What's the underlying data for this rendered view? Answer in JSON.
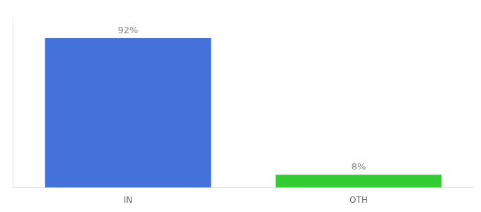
{
  "chart_data": {
    "type": "bar",
    "categories": [
      "IN",
      "OTH"
    ],
    "values": [
      92,
      8
    ],
    "value_labels": [
      "92%",
      "8%"
    ],
    "colors": [
      "#4472db",
      "#33cc33"
    ],
    "ylim": [
      0,
      105
    ],
    "data_labels": true,
    "tick_labels": "x",
    "grid": false
  }
}
